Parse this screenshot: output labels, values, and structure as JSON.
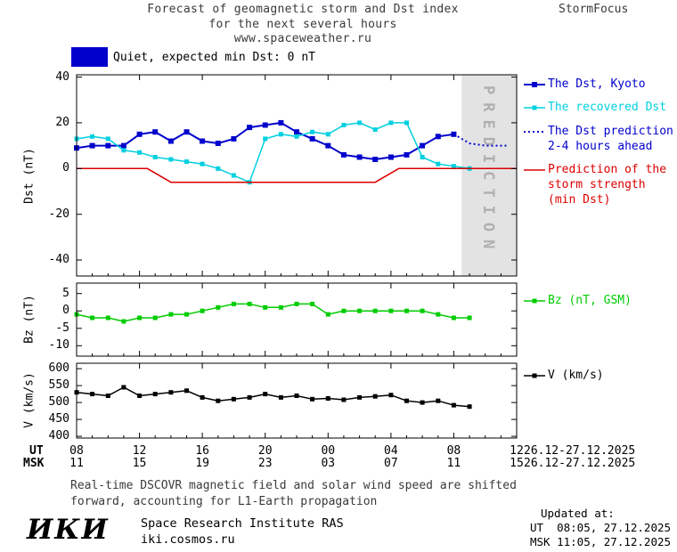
{
  "header": {
    "title_line1": "Forecast of geomagnetic storm and Dst index",
    "title_line2": "for the next several hours",
    "title_line3": "www.spaceweather.ru",
    "brand": "StormFocus"
  },
  "status": {
    "label": "Quiet, expected min Dst: 0 nT",
    "swatch_color": "#0000cc"
  },
  "prediction_band": {
    "label": "PREDICTION",
    "fill": "#e3e3e3",
    "text_color": "#b0b0b0"
  },
  "legend": {
    "dst_kyoto": "The Dst, Kyoto",
    "recovered": "The recovered Dst",
    "prediction_line1": "The Dst prediction",
    "prediction_line2": "2-4 hours ahead",
    "storm_line1": "Prediction of the",
    "storm_line2": "storm strength",
    "storm_line3": "(min Dst)",
    "bz": "Bz (nT, GSM)",
    "v": "V (km/s)"
  },
  "axes": {
    "dst_label": "Dst (nT)",
    "bz_label": "Bz (nT)",
    "v_label": "V (km/s)",
    "ut_row": "UT",
    "msk_row": "MSK",
    "ut_ticks": [
      "08",
      "12",
      "16",
      "20",
      "00",
      "04",
      "08",
      "12"
    ],
    "msk_ticks": [
      "11",
      "15",
      "19",
      "23",
      "03",
      "07",
      "11",
      "15"
    ],
    "ut_date": "26.12-27.12.2025",
    "msk_date": "26.12-27.12.2025"
  },
  "footer": {
    "note_line1": "Real-time DSCOVR magnetic field and solar wind speed are shifted",
    "note_line2": "forward, accounting for L1-Earth propagation",
    "updated_label": "Updated at:",
    "updated_ut": "UT  08:05, 27.12.2025",
    "updated_msk": "MSK 11:05, 27.12.2025",
    "logo": "ИКИ",
    "institute": "Space Research Institute RAS",
    "site": "iki.cosmos.ru"
  },
  "chart_data": [
    {
      "type": "line",
      "ylabel": "Dst (nT)",
      "ylim": [
        -47,
        41
      ],
      "yticks": [
        40,
        20,
        0,
        -20,
        -40
      ],
      "xlim": [
        8,
        36
      ],
      "xticks": [
        8,
        12,
        16,
        20,
        24,
        28,
        32,
        36
      ],
      "x_unit": "hour UT, 26.12-27.12.2025",
      "grid": false,
      "prediction_band_x": [
        32.5,
        36
      ],
      "series": [
        {
          "id": "dst-kyoto",
          "name": "The Dst, Kyoto",
          "color": "#0000cd",
          "marker": "square",
          "marker_size": 6,
          "style": "solid",
          "width": 2,
          "x": [
            8,
            9,
            10,
            11,
            12,
            13,
            14,
            15,
            16,
            17,
            18,
            19,
            20,
            21,
            22,
            23,
            24,
            25,
            26,
            27,
            28,
            29,
            30,
            31,
            32
          ],
          "y": [
            9,
            10,
            10,
            10,
            15,
            16,
            12,
            16,
            12,
            11,
            13,
            18,
            19,
            20,
            16,
            13,
            10,
            6,
            5,
            4,
            5,
            6,
            10,
            14,
            15
          ]
        },
        {
          "id": "dst-recovered",
          "name": "The recovered Dst",
          "color": "#00d0e0",
          "marker": "square",
          "marker_size": 5,
          "style": "solid",
          "width": 1.5,
          "x": [
            8,
            9,
            10,
            11,
            12,
            13,
            14,
            15,
            16,
            17,
            18,
            19,
            20,
            21,
            22,
            23,
            24,
            25,
            26,
            27,
            28,
            29,
            30,
            31,
            32,
            33
          ],
          "y": [
            13,
            14,
            13,
            8,
            7,
            5,
            4,
            3,
            2,
            0,
            -3,
            -6,
            13,
            15,
            14,
            16,
            15,
            19,
            20,
            17,
            20,
            20,
            5,
            2,
            1,
            0
          ]
        },
        {
          "id": "dst-prediction",
          "name": "The Dst prediction 2-4 hours ahead",
          "color": "#0000cd",
          "style": "dotted",
          "width": 2,
          "x": [
            32,
            33,
            34,
            35,
            35.5
          ],
          "y": [
            15,
            11,
            10,
            10,
            10
          ]
        },
        {
          "id": "storm-prediction",
          "name": "Prediction of the storm strength (min Dst)",
          "color": "#dd0000",
          "style": "solid",
          "width": 1.5,
          "x": [
            8,
            12.5,
            14,
            27,
            28.5,
            36
          ],
          "y": [
            0,
            0,
            -6,
            -6,
            0,
            0
          ]
        }
      ]
    },
    {
      "type": "line",
      "ylabel": "Bz (nT)",
      "ylim": [
        -13,
        8
      ],
      "yticks": [
        5,
        0,
        -5,
        -10
      ],
      "xlim": [
        8,
        36
      ],
      "grid": false,
      "series": [
        {
          "id": "bz",
          "name": "Bz (nT, GSM)",
          "color": "#00cc00",
          "marker": "square",
          "marker_size": 5,
          "style": "solid",
          "width": 1.5,
          "x": [
            8,
            9,
            10,
            11,
            12,
            13,
            14,
            15,
            16,
            17,
            18,
            19,
            20,
            21,
            22,
            23,
            24,
            25,
            26,
            27,
            28,
            29,
            30,
            31,
            32,
            33
          ],
          "y": [
            -1,
            -2,
            -2,
            -3,
            -2,
            -2,
            -1,
            -1,
            0,
            1,
            2,
            2,
            1,
            1,
            2,
            2,
            -1,
            0,
            0,
            0,
            0,
            0,
            0,
            -1,
            -2,
            -2
          ]
        }
      ]
    },
    {
      "type": "line",
      "ylabel": "V (km/s)",
      "ylim": [
        395,
        616
      ],
      "yticks": [
        600,
        550,
        500,
        450,
        400
      ],
      "xlim": [
        8,
        36
      ],
      "grid": false,
      "series": [
        {
          "id": "v",
          "name": "V (km/s)",
          "color": "#000000",
          "marker": "square",
          "marker_size": 5,
          "style": "solid",
          "width": 1.5,
          "x": [
            8,
            9,
            10,
            11,
            12,
            13,
            14,
            15,
            16,
            17,
            18,
            19,
            20,
            21,
            22,
            23,
            24,
            25,
            26,
            27,
            28,
            29,
            30,
            31,
            32,
            33
          ],
          "y": [
            530,
            525,
            520,
            545,
            520,
            525,
            530,
            535,
            515,
            505,
            510,
            515,
            525,
            515,
            520,
            510,
            512,
            508,
            515,
            518,
            522,
            505,
            500,
            505,
            492,
            488
          ]
        }
      ]
    }
  ]
}
